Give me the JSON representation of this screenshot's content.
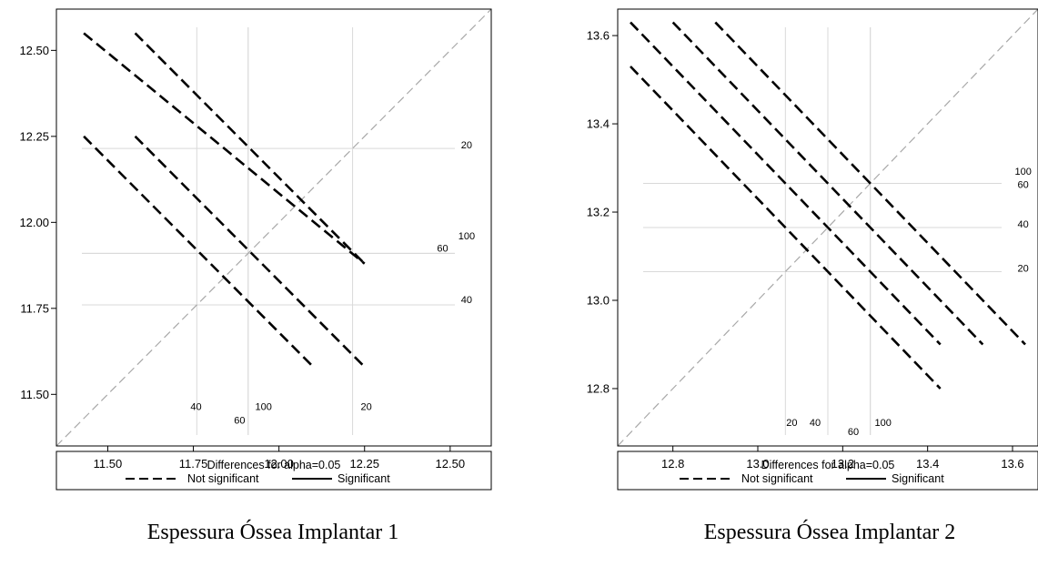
{
  "chart_data": [
    {
      "type": "diffogram",
      "caption": "Espessura Óssea Implantar 1",
      "xlim": [
        11.35,
        12.62
      ],
      "ylim": [
        11.35,
        12.62
      ],
      "xticks": [
        11.5,
        11.75,
        12.0,
        12.25,
        12.5
      ],
      "xtick_labels": [
        "11.50",
        "11.75",
        "12.00",
        "12.25",
        "12.50"
      ],
      "yticks": [
        11.5,
        11.75,
        12.0,
        12.25,
        12.5
      ],
      "ytick_labels": [
        "11.50",
        "11.75",
        "12.00",
        "12.25",
        "12.50"
      ],
      "ref_lines": [
        {
          "label": "20",
          "value": 12.215
        },
        {
          "label": "40",
          "value": 11.76
        },
        {
          "label": "60",
          "value": 11.91
        },
        {
          "label": "100",
          "value": 11.91
        }
      ],
      "ref_label_pos": [
        {
          "text": "20",
          "x": 12.548,
          "y": 12.215
        },
        {
          "text": "100",
          "x": 12.548,
          "y": 11.95
        },
        {
          "text": "60",
          "x": 12.478,
          "y": 11.915
        },
        {
          "text": "40",
          "x": 12.548,
          "y": 11.765
        },
        {
          "text": "40",
          "x": 11.758,
          "y": 11.455
        },
        {
          "text": "60",
          "x": 11.885,
          "y": 11.415
        },
        {
          "text": "100",
          "x": 11.955,
          "y": 11.455
        },
        {
          "text": "20",
          "x": 12.255,
          "y": 11.455
        }
      ],
      "segments": [
        {
          "x1": 11.43,
          "y1": 12.55,
          "x2": 12.25,
          "y2": 11.88
        },
        {
          "x1": 11.58,
          "y1": 12.55,
          "x2": 12.25,
          "y2": 11.88
        },
        {
          "x1": 11.43,
          "y1": 12.25,
          "x2": 12.1,
          "y2": 11.58
        },
        {
          "x1": 11.58,
          "y1": 12.25,
          "x2": 12.25,
          "y2": 11.58
        }
      ],
      "legend": {
        "title": "Differences for alpha=0.05",
        "items": [
          {
            "label": "Not significant",
            "style": "dashed"
          },
          {
            "label": "Significant",
            "style": "solid"
          }
        ]
      }
    },
    {
      "type": "diffogram",
      "caption": "Espessura Óssea Implantar 2",
      "xlim": [
        12.67,
        13.66
      ],
      "ylim": [
        12.67,
        13.66
      ],
      "xticks": [
        12.8,
        13.0,
        13.2,
        13.4,
        13.6
      ],
      "xtick_labels": [
        "12.8",
        "13.0",
        "13.2",
        "13.4",
        "13.6"
      ],
      "yticks": [
        12.8,
        13.0,
        13.2,
        13.4,
        13.6
      ],
      "ytick_labels": [
        "12.8",
        "13.0",
        "13.2",
        "13.4",
        "13.6"
      ],
      "ref_lines": [
        {
          "label": "20",
          "value": 13.065
        },
        {
          "label": "40",
          "value": 13.165
        },
        {
          "label": "60",
          "value": 13.265
        },
        {
          "label": "100",
          "value": 13.265
        }
      ],
      "ref_label_pos": [
        {
          "text": "100",
          "x": 13.625,
          "y": 13.285
        },
        {
          "text": "60",
          "x": 13.625,
          "y": 13.255
        },
        {
          "text": "40",
          "x": 13.625,
          "y": 13.165
        },
        {
          "text": "20",
          "x": 13.625,
          "y": 13.065
        },
        {
          "text": "20",
          "x": 13.08,
          "y": 12.715
        },
        {
          "text": "40",
          "x": 13.135,
          "y": 12.715
        },
        {
          "text": "60",
          "x": 13.225,
          "y": 12.695
        },
        {
          "text": "100",
          "x": 13.295,
          "y": 12.715
        }
      ],
      "segments": [
        {
          "x1": 12.7,
          "y1": 13.53,
          "x2": 13.43,
          "y2": 12.8
        },
        {
          "x1": 12.7,
          "y1": 13.63,
          "x2": 13.43,
          "y2": 12.9
        },
        {
          "x1": 12.8,
          "y1": 13.63,
          "x2": 13.53,
          "y2": 12.9
        },
        {
          "x1": 12.9,
          "y1": 13.63,
          "x2": 13.63,
          "y2": 12.9
        }
      ],
      "legend": {
        "title": "Differences for alpha=0.05",
        "items": [
          {
            "label": "Not significant",
            "style": "dashed"
          },
          {
            "label": "Significant",
            "style": "solid"
          }
        ]
      }
    }
  ]
}
